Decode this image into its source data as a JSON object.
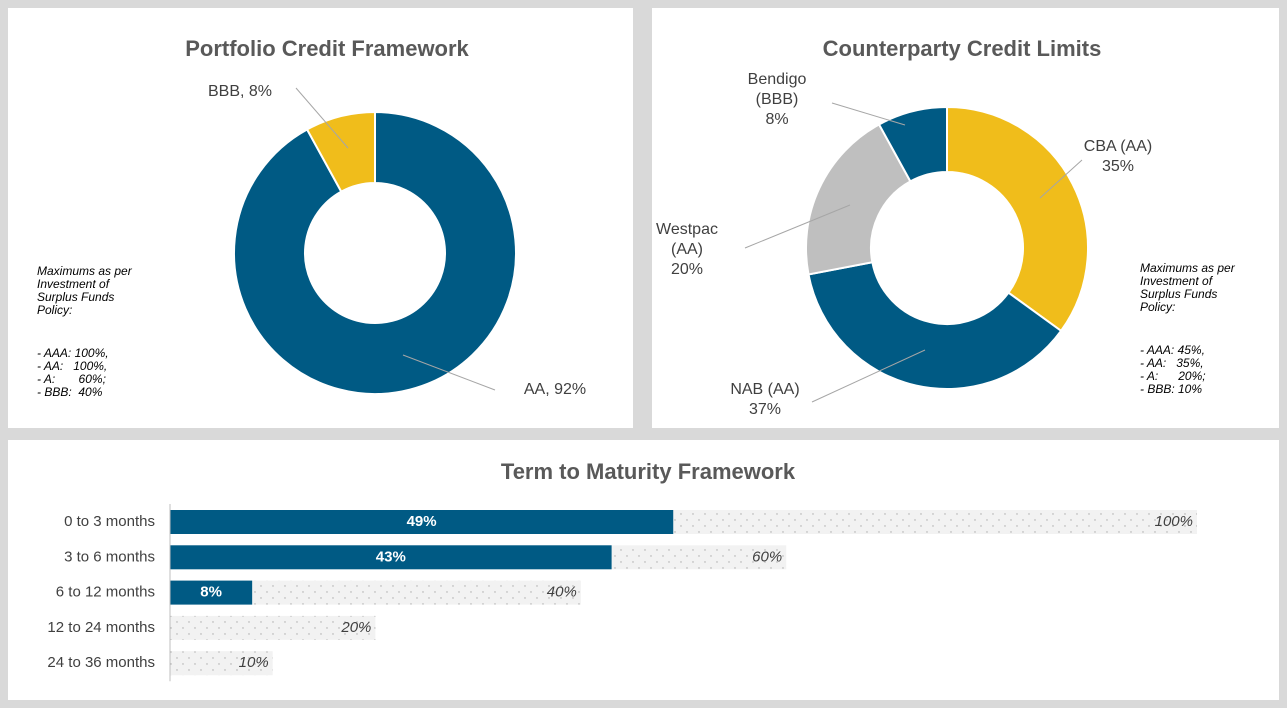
{
  "chart_data": [
    {
      "type": "donut",
      "title": "Portfolio Credit Framework",
      "categories": [
        "AA",
        "BBB"
      ],
      "values": [
        92,
        8
      ],
      "value_labels": [
        "AA, 92%",
        "BBB, 8%"
      ],
      "colors": [
        "#005a84",
        "#f0bd1b"
      ],
      "annotation": {
        "heading": "Maximums as per Investment of Surplus Funds Policy:",
        "items": [
          "- AAA: 100%,",
          "- AA:   100%,",
          "- A:       60%;",
          "- BBB:  40%"
        ]
      }
    },
    {
      "type": "donut",
      "title": "Counterparty Credit Limits",
      "categories": [
        "CBA (AA)",
        "NAB (AA)",
        "Westpac (AA)",
        "Bendigo (BBB)"
      ],
      "values": [
        35,
        37,
        20,
        8
      ],
      "value_labels": [
        "35%",
        "37%",
        "20%",
        "8%"
      ],
      "colors": [
        "#f0bd1b",
        "#005a84",
        "#bfbfbf",
        "#005a84"
      ],
      "annotation": {
        "heading": "Maximums as per Investment of Surplus Funds Policy:",
        "items": [
          "- AAA: 45%,",
          "- AA:   35%,",
          "- A:      20%;",
          "- BBB: 10%"
        ]
      }
    },
    {
      "type": "hbar",
      "title": "Term to Maturity Framework",
      "categories": [
        "0 to 3 months",
        "3 to 6 months",
        "6 to 12 months",
        "12 to 24 months",
        "24 to 36 months"
      ],
      "xlim": [
        0,
        100
      ],
      "series": [
        {
          "color": "#f2f2f2",
          "values": [
            100,
            60,
            40,
            20,
            10
          ],
          "value_labels": [
            "100%",
            "60%",
            "40%",
            "20%",
            "10%"
          ]
        },
        {
          "color": "#005a84",
          "values": [
            49,
            43,
            8,
            null,
            null
          ],
          "value_labels": [
            "49%",
            "43%",
            "8%",
            null,
            null
          ]
        }
      ]
    }
  ]
}
